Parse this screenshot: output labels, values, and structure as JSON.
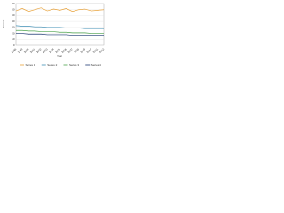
{
  "chart_data": {
    "type": "line",
    "x_label": "Year",
    "y_label": "Percent",
    "categories": [
      "1998",
      "1999",
      "2000",
      "2001",
      "2002",
      "2003",
      "2004",
      "2005",
      "2006",
      "2007",
      "2008",
      "2009",
      "2010",
      "2011",
      "2012"
    ],
    "series": [
      {
        "name": "Series 1",
        "color": "#e8a23a",
        "values": [
          58,
          62,
          57,
          60,
          63,
          58,
          61,
          59,
          62,
          57,
          60,
          61,
          58,
          59,
          60
        ]
      },
      {
        "name": "Series 2",
        "color": "#3f8fb5",
        "values": [
          33,
          32,
          32,
          31,
          31,
          30,
          30,
          30,
          29,
          29,
          29,
          28,
          28,
          28,
          28
        ]
      },
      {
        "name": "Series 3",
        "color": "#4ca34c",
        "values": [
          25,
          25,
          24,
          24,
          23,
          23,
          23,
          22,
          22,
          21,
          21,
          21,
          20,
          20,
          20
        ]
      },
      {
        "name": "Series 4",
        "color": "#1f3b73",
        "values": [
          20,
          20,
          19,
          19,
          19,
          18,
          18,
          18,
          18,
          17,
          17,
          17,
          17,
          17,
          17
        ]
      }
    ],
    "ylim": [
      0,
      70
    ],
    "yticks": [
      0,
      10,
      20,
      30,
      40,
      50,
      60,
      70
    ],
    "grid": true
  }
}
